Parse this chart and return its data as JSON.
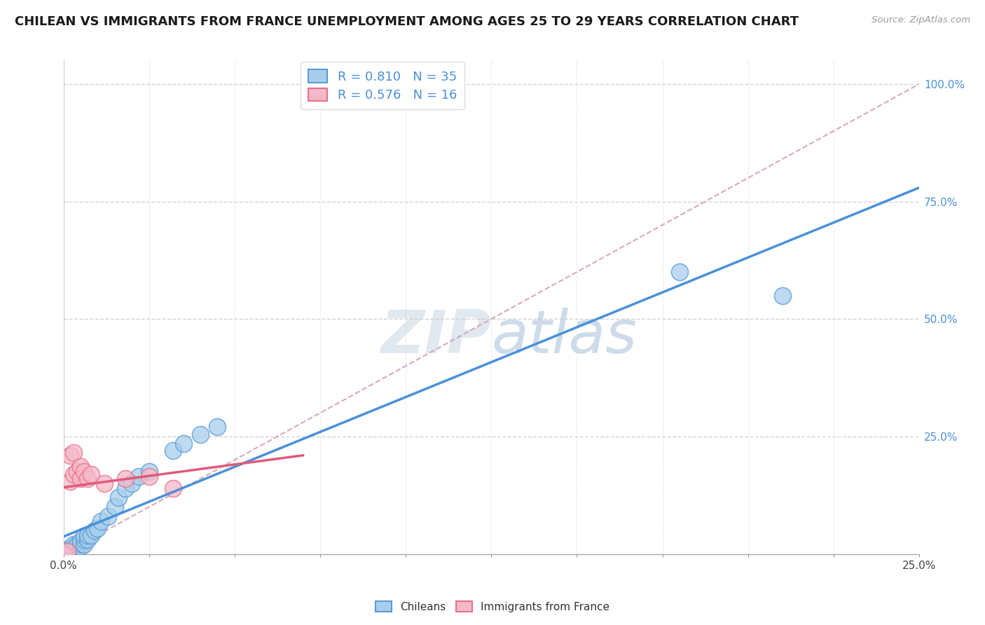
{
  "title": "CHILEAN VS IMMIGRANTS FROM FRANCE UNEMPLOYMENT AMONG AGES 25 TO 29 YEARS CORRELATION CHART",
  "source": "Source: ZipAtlas.com",
  "watermark": "ZIPatlas",
  "chileans_R": 0.81,
  "chileans_N": 35,
  "france_R": 0.576,
  "france_N": 16,
  "chilean_color": "#A8CEEC",
  "france_color": "#F5B8C8",
  "chilean_edge_color": "#5B9BD5",
  "france_edge_color": "#E8728A",
  "chilean_line_color": "#4A90D9",
  "france_line_color": "#E05A7A",
  "ref_line_color": "#D8A0B0",
  "chileans_x": [
    0.0,
    0.001,
    0.001,
    0.002,
    0.002,
    0.003,
    0.003,
    0.003,
    0.004,
    0.004,
    0.005,
    0.005,
    0.005,
    0.006,
    0.006,
    0.006,
    0.007,
    0.007,
    0.008,
    0.009,
    0.01,
    0.011,
    0.013,
    0.015,
    0.016,
    0.018,
    0.02,
    0.022,
    0.025,
    0.032,
    0.035,
    0.04,
    0.045,
    0.18,
    0.21
  ],
  "chileans_y": [
    0.0,
    0.003,
    0.008,
    0.005,
    0.012,
    0.008,
    0.012,
    0.02,
    0.015,
    0.02,
    0.015,
    0.022,
    0.028,
    0.02,
    0.03,
    0.038,
    0.03,
    0.04,
    0.04,
    0.05,
    0.055,
    0.07,
    0.08,
    0.1,
    0.12,
    0.14,
    0.15,
    0.165,
    0.175,
    0.22,
    0.235,
    0.255,
    0.27,
    0.6,
    0.55
  ],
  "france_x": [
    0.0,
    0.001,
    0.002,
    0.002,
    0.003,
    0.003,
    0.004,
    0.005,
    0.005,
    0.006,
    0.007,
    0.008,
    0.012,
    0.018,
    0.025,
    0.032
  ],
  "france_y": [
    0.0,
    0.005,
    0.155,
    0.21,
    0.17,
    0.215,
    0.175,
    0.185,
    0.16,
    0.175,
    0.16,
    0.17,
    0.15,
    0.16,
    0.165,
    0.14
  ],
  "xlim": [
    0.0,
    0.25
  ],
  "ylim": [
    0.0,
    1.05
  ],
  "title_fontsize": 13,
  "legend_fontsize": 13,
  "tick_fontsize": 11,
  "marker_size": 300
}
